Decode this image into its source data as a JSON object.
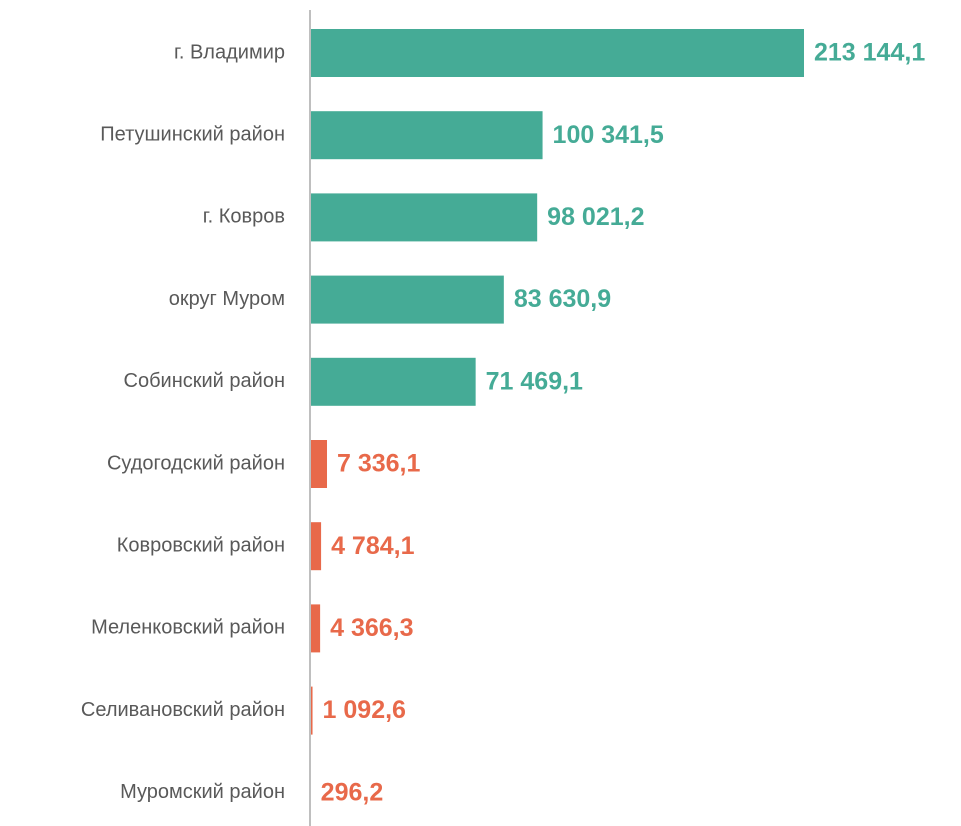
{
  "chart_data": {
    "type": "bar",
    "orientation": "horizontal",
    "categories": [
      "г. Владимир",
      "Петушинский район",
      "г. Ковров",
      "округ Муром",
      "Собинский район",
      "Судогодский район",
      "Ковровский район",
      "Меленковский район",
      "Селивановский район",
      "Муромский район"
    ],
    "values": [
      213144.1,
      100341.5,
      98021.2,
      83630.9,
      71469.1,
      7336.1,
      4784.1,
      4366.3,
      1092.6,
      296.2
    ],
    "value_labels": [
      "213 144,1",
      "100 341,5",
      "98 021,2",
      "83 630,9",
      "71 469,1",
      "7 336,1",
      "4 784,1",
      "4 366,3",
      "1 092,6",
      "296,2"
    ],
    "colors": [
      "#45ab96",
      "#45ab96",
      "#45ab96",
      "#45ab96",
      "#45ab96",
      "#e8694a",
      "#e8694a",
      "#e8694a",
      "#e8694a",
      "#e8694a"
    ]
  }
}
